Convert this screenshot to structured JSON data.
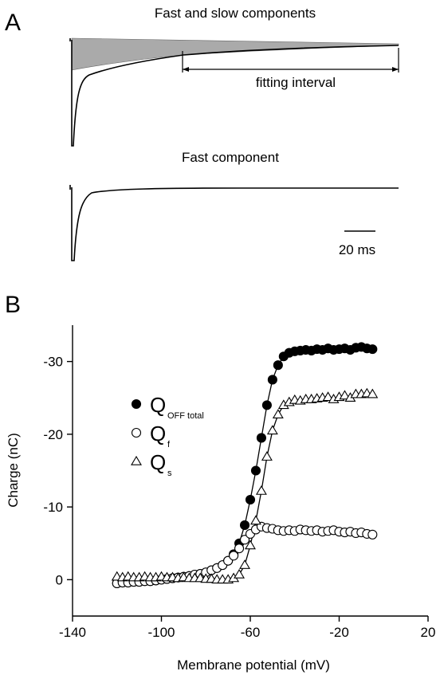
{
  "panel_a": {
    "label": "A",
    "trace_top_title": "Fast and slow components",
    "fitting_label": "fitting interval",
    "trace_bottom_title": "Fast component",
    "scale_bar_label": "20 ms"
  },
  "chart_data": {
    "type": "scatter",
    "panel_label": "B",
    "x_label": "Membrane potential (mV)",
    "y_label": "Charge (nC)",
    "xlim": [
      -140,
      20
    ],
    "xticks": [
      -140,
      -100,
      -60,
      -20,
      20
    ],
    "ylim": [
      5,
      -35
    ],
    "yticks": [
      0,
      -10,
      -20,
      -30
    ],
    "x": [
      -120,
      -117.5,
      -115,
      -112.5,
      -110,
      -107.5,
      -105,
      -102.5,
      -100,
      -97.5,
      -95,
      -92.5,
      -90,
      -87.5,
      -85,
      -82.5,
      -80,
      -77.5,
      -75,
      -72.5,
      -70,
      -67.5,
      -65,
      -62.5,
      -60,
      -57.5,
      -55,
      -52.5,
      -50,
      -47.5,
      -45,
      -42.5,
      -40,
      -37.5,
      -35,
      -32.5,
      -30,
      -27.5,
      -25,
      -22.5,
      -20,
      -17.5,
      -15,
      -12.5,
      -10,
      -7.5,
      -5
    ],
    "series": [
      {
        "name": "Q",
        "subscript": "OFF total",
        "marker": "filled-circle",
        "color": "#000000",
        "values": [
          0.5,
          0.4,
          0.4,
          0.3,
          0.3,
          0.2,
          0.2,
          0.1,
          0,
          -0.1,
          -0.2,
          -0.3,
          -0.4,
          -0.5,
          -0.7,
          -0.8,
          -1.0,
          -1.3,
          -1.6,
          -2.0,
          -2.6,
          -3.5,
          -5.0,
          -7.5,
          -11.0,
          -15.0,
          -19.5,
          -24.0,
          -27.5,
          -29.5,
          -30.7,
          -31.2,
          -31.4,
          -31.5,
          -31.6,
          -31.5,
          -31.7,
          -31.6,
          -31.8,
          -31.6,
          -31.7,
          -31.8,
          -31.6,
          -31.9,
          -32.0,
          -31.8,
          -31.7
        ]
      },
      {
        "name": "Q",
        "subscript": "f",
        "marker": "open-circle",
        "color": "#000000",
        "values": [
          0.5,
          0.4,
          0.4,
          0.3,
          0.3,
          0.2,
          0.2,
          0.1,
          0,
          -0.1,
          -0.2,
          -0.3,
          -0.4,
          -0.5,
          -0.7,
          -0.8,
          -1.0,
          -1.3,
          -1.6,
          -2.0,
          -2.6,
          -3.3,
          -4.3,
          -5.5,
          -6.3,
          -6.9,
          -7.3,
          -7.1,
          -7.0,
          -6.8,
          -6.7,
          -6.8,
          -6.7,
          -6.9,
          -6.8,
          -6.7,
          -6.8,
          -6.6,
          -6.7,
          -6.8,
          -6.6,
          -6.5,
          -6.6,
          -6.4,
          -6.5,
          -6.3,
          -6.2
        ]
      },
      {
        "name": "Q",
        "subscript": "s",
        "marker": "open-triangle",
        "color": "#000000",
        "values": [
          -0.4,
          -0.3,
          -0.4,
          -0.3,
          -0.3,
          -0.4,
          -0.3,
          -0.3,
          -0.4,
          -0.3,
          -0.3,
          -0.2,
          -0.3,
          -0.2,
          -0.2,
          -0.2,
          -0.1,
          -0.1,
          0,
          0,
          0,
          -0.2,
          -0.7,
          -2.0,
          -4.7,
          -8.1,
          -12.2,
          -16.9,
          -20.5,
          -22.7,
          -24.0,
          -24.4,
          -24.7,
          -24.6,
          -24.8,
          -24.8,
          -24.9,
          -25.0,
          -25.1,
          -24.8,
          -25.1,
          -25.3,
          -25.0,
          -25.5,
          -25.5,
          -25.6,
          -25.5
        ]
      }
    ]
  }
}
